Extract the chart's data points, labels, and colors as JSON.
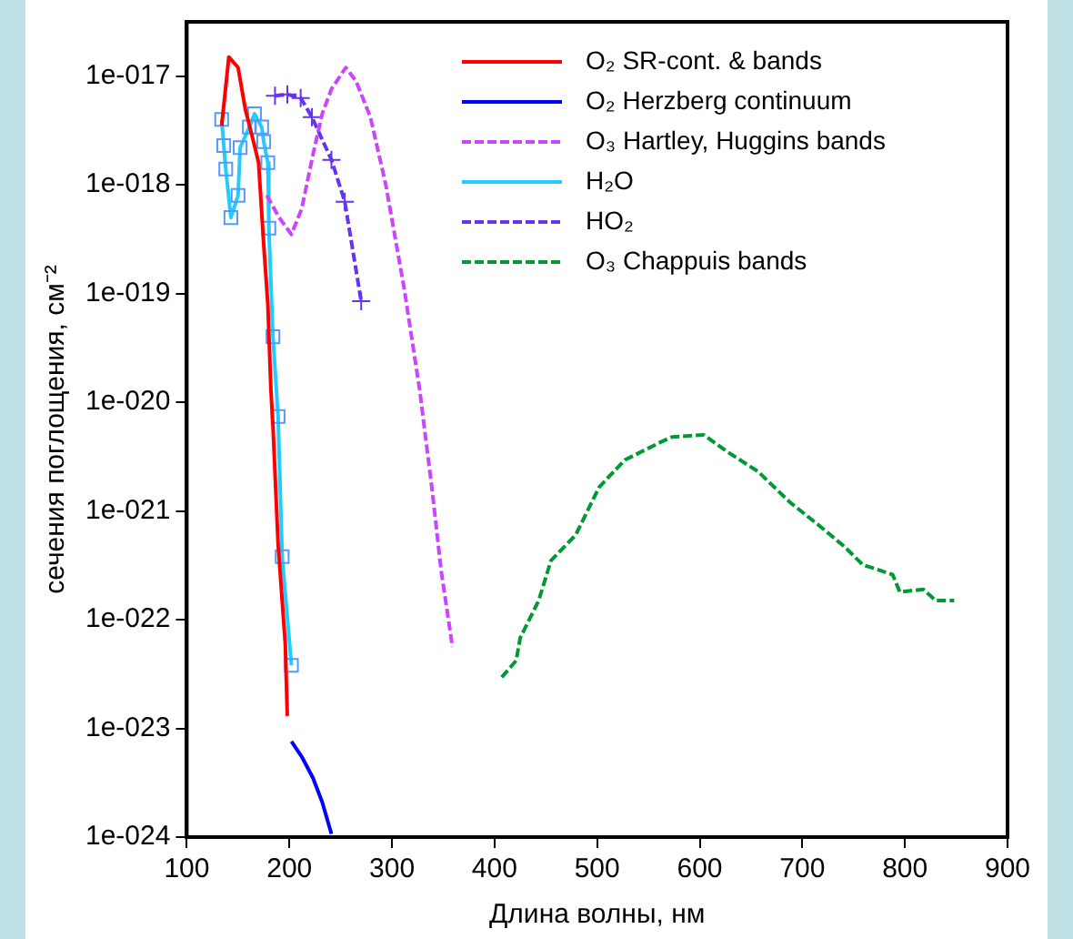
{
  "chart_data": {
    "type": "line",
    "xlabel": "Длина волны, нм",
    "ylabel": "сечения поглощения, см⁻²",
    "log": "y",
    "xlim": [
      100,
      900
    ],
    "xticks": [
      100,
      200,
      300,
      400,
      500,
      600,
      700,
      800,
      900
    ],
    "ylim": [
      1e-24,
      3.16e-17
    ],
    "yticks": [
      {
        "value": 1e-24,
        "label": "1e-024"
      },
      {
        "value": 1e-23,
        "label": "1e-023"
      },
      {
        "value": 1e-22,
        "label": "1e-022"
      },
      {
        "value": 1e-21,
        "label": "1e-021"
      },
      {
        "value": 1e-20,
        "label": "1e-020"
      },
      {
        "value": 1e-19,
        "label": "1e-019"
      },
      {
        "value": 1e-18,
        "label": "1e-018"
      },
      {
        "value": 1e-17,
        "label": "1e-017"
      }
    ],
    "grid": false,
    "legend": "top right",
    "series": [
      {
        "name": "O₂ SR-cont. & bands",
        "color": "#ff0000",
        "line_style": "solid",
        "marker": "none",
        "x": [
          134,
          141,
          150,
          157,
          165,
          170,
          175,
          179,
          182,
          184,
          189,
          196,
          198
        ],
        "values": [
          3.5e-18,
          1.5e-17,
          1.2e-17,
          5e-18,
          2.5e-18,
          1.6e-18,
          2.8e-19,
          8e-20,
          1.3e-20,
          6e-21,
          5e-22,
          6e-23,
          1.3e-23
        ]
      },
      {
        "name": "O₂ Herzberg continuum",
        "color": "#0000ff",
        "line_style": "solid",
        "marker": "none",
        "x": [
          202,
          212,
          223,
          232,
          241
        ],
        "values": [
          7.6e-24,
          5.5e-24,
          3.5e-24,
          2.1e-24,
          1.07e-24
        ]
      },
      {
        "name": "O₃ Hartley, Huggins bands",
        "color": "#cc44ff",
        "line_style": "dashed",
        "marker": "none",
        "x": [
          178,
          190,
          202,
          212,
          223,
          232,
          241,
          255,
          265,
          279,
          294,
          312,
          327,
          339,
          348,
          359
        ],
        "values": [
          8e-19,
          5e-19,
          3.5e-19,
          6e-19,
          1.9e-18,
          4.5e-18,
          7.6e-18,
          1.2e-17,
          9e-18,
          4.2e-18,
          1e-18,
          1.1e-19,
          1.3e-20,
          1.6e-21,
          2.8e-22,
          5.6e-23
        ]
      },
      {
        "name": "H₂O",
        "color": "#22ccff",
        "line_style": "solid",
        "marker": "square",
        "x": [
          134,
          136,
          138,
          143,
          150,
          152,
          161,
          166,
          173,
          175,
          179,
          180,
          184,
          189,
          193,
          202
        ],
        "values": [
          4e-18,
          2.3e-18,
          1.4e-18,
          5e-19,
          8e-19,
          2.2e-18,
          3.4e-18,
          4.5e-18,
          3.4e-18,
          2.5e-18,
          1.6e-18,
          4e-19,
          4e-20,
          7.4e-21,
          3.8e-22,
          3.8e-23
        ]
      },
      {
        "name": "HO₂",
        "color": "#6633ee",
        "line_style": "dashed",
        "marker": "cross",
        "x": [
          186,
          198,
          211,
          222,
          241,
          254,
          270
        ],
        "values": [
          6.6e-18,
          6.8e-18,
          6.3e-18,
          4.2e-18,
          1.7e-18,
          7e-19,
          8.5e-20
        ]
      },
      {
        "name": "O₃ Chappuis bands",
        "color": "#009933",
        "line_style": "dashed",
        "marker": "none",
        "x": [
          407,
          421,
          425,
          443,
          455,
          479,
          502,
          527,
          562,
          573,
          604,
          627,
          657,
          688,
          716,
          741,
          759,
          788,
          795,
          818,
          830,
          848
        ],
        "values": [
          2.95e-23,
          4.2e-23,
          6.8e-23,
          1.5e-22,
          3.5e-22,
          6e-22,
          1.66e-21,
          2.95e-21,
          4.3e-21,
          4.8e-21,
          5e-21,
          3.5e-21,
          2.3e-21,
          1.2e-21,
          7.4e-22,
          4.7e-22,
          3.2e-22,
          2.6e-22,
          1.8e-22,
          1.9e-22,
          1.5e-22,
          1.5e-22
        ]
      }
    ]
  }
}
